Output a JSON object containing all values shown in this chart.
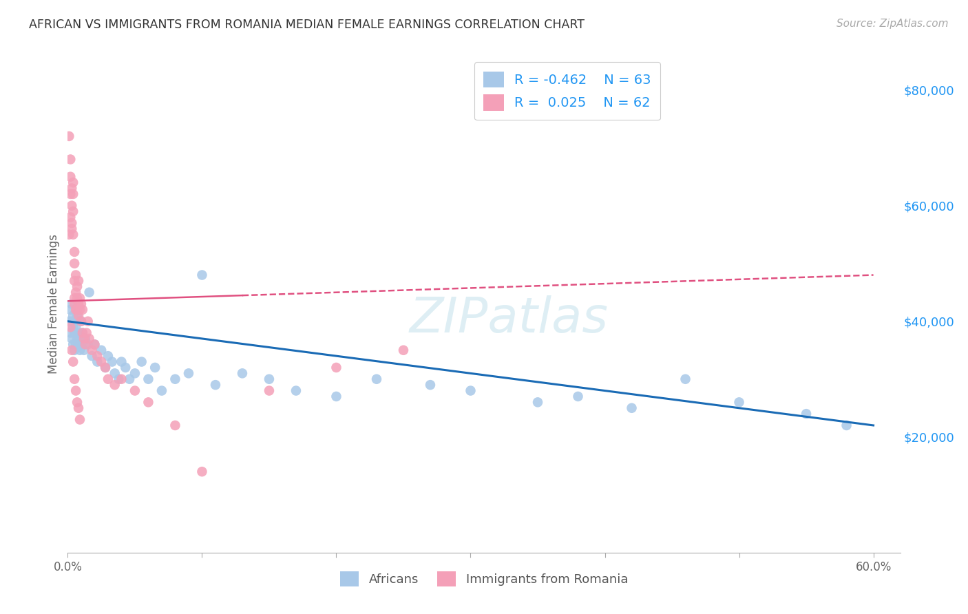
{
  "title": "AFRICAN VS IMMIGRANTS FROM ROMANIA MEDIAN FEMALE EARNINGS CORRELATION CHART",
  "source": "Source: ZipAtlas.com",
  "ylabel": "Median Female Earnings",
  "ytick_labels": [
    "$20,000",
    "$40,000",
    "$60,000",
    "$80,000"
  ],
  "ytick_values": [
    20000,
    40000,
    60000,
    80000
  ],
  "legend_label1": "Africans",
  "legend_label2": "Immigrants from Romania",
  "color_blue": "#a8c8e8",
  "color_pink": "#f4a0b8",
  "color_blue_line": "#1a6bb5",
  "color_pink_line": "#e05080",
  "color_blue_text": "#2196f3",
  "background_color": "#ffffff",
  "grid_color": "#cccccc",
  "xmin": 0,
  "xmax": 0.62,
  "ymin": 0,
  "ymax": 86000,
  "africans_x": [
    0.001,
    0.002,
    0.002,
    0.003,
    0.003,
    0.003,
    0.004,
    0.004,
    0.004,
    0.005,
    0.005,
    0.005,
    0.006,
    0.006,
    0.006,
    0.007,
    0.007,
    0.008,
    0.008,
    0.009,
    0.009,
    0.01,
    0.01,
    0.011,
    0.012,
    0.013,
    0.015,
    0.016,
    0.018,
    0.02,
    0.022,
    0.025,
    0.028,
    0.03,
    0.033,
    0.035,
    0.038,
    0.04,
    0.043,
    0.046,
    0.05,
    0.055,
    0.06,
    0.065,
    0.07,
    0.08,
    0.09,
    0.1,
    0.11,
    0.13,
    0.15,
    0.17,
    0.2,
    0.23,
    0.27,
    0.3,
    0.35,
    0.38,
    0.42,
    0.46,
    0.5,
    0.55,
    0.58
  ],
  "africans_y": [
    40000,
    38000,
    42000,
    37000,
    40000,
    43000,
    39000,
    41000,
    36000,
    38000,
    40000,
    35000,
    38000,
    36000,
    39000,
    37000,
    41000,
    36000,
    38000,
    37000,
    35000,
    40000,
    36000,
    38000,
    35000,
    37000,
    36000,
    45000,
    34000,
    36000,
    33000,
    35000,
    32000,
    34000,
    33000,
    31000,
    30000,
    33000,
    32000,
    30000,
    31000,
    33000,
    30000,
    32000,
    28000,
    30000,
    31000,
    48000,
    29000,
    31000,
    30000,
    28000,
    27000,
    30000,
    29000,
    28000,
    26000,
    27000,
    25000,
    30000,
    26000,
    24000,
    22000
  ],
  "romania_x": [
    0.001,
    0.001,
    0.002,
    0.002,
    0.002,
    0.002,
    0.003,
    0.003,
    0.003,
    0.003,
    0.004,
    0.004,
    0.004,
    0.004,
    0.005,
    0.005,
    0.005,
    0.005,
    0.005,
    0.006,
    0.006,
    0.006,
    0.007,
    0.007,
    0.007,
    0.008,
    0.008,
    0.008,
    0.009,
    0.009,
    0.01,
    0.01,
    0.011,
    0.011,
    0.012,
    0.013,
    0.014,
    0.015,
    0.016,
    0.018,
    0.02,
    0.022,
    0.025,
    0.028,
    0.03,
    0.035,
    0.04,
    0.05,
    0.06,
    0.08,
    0.1,
    0.15,
    0.2,
    0.25,
    0.002,
    0.003,
    0.004,
    0.005,
    0.006,
    0.007,
    0.008,
    0.009
  ],
  "romania_y": [
    55000,
    72000,
    65000,
    68000,
    58000,
    62000,
    57000,
    60000,
    63000,
    56000,
    62000,
    59000,
    64000,
    55000,
    43000,
    47000,
    44000,
    50000,
    52000,
    45000,
    48000,
    42000,
    44000,
    46000,
    42000,
    43000,
    47000,
    41000,
    44000,
    42000,
    43000,
    40000,
    42000,
    38000,
    37000,
    36000,
    38000,
    40000,
    37000,
    35000,
    36000,
    34000,
    33000,
    32000,
    30000,
    29000,
    30000,
    28000,
    26000,
    22000,
    14000,
    28000,
    32000,
    35000,
    39000,
    35000,
    33000,
    30000,
    28000,
    26000,
    25000,
    23000
  ]
}
